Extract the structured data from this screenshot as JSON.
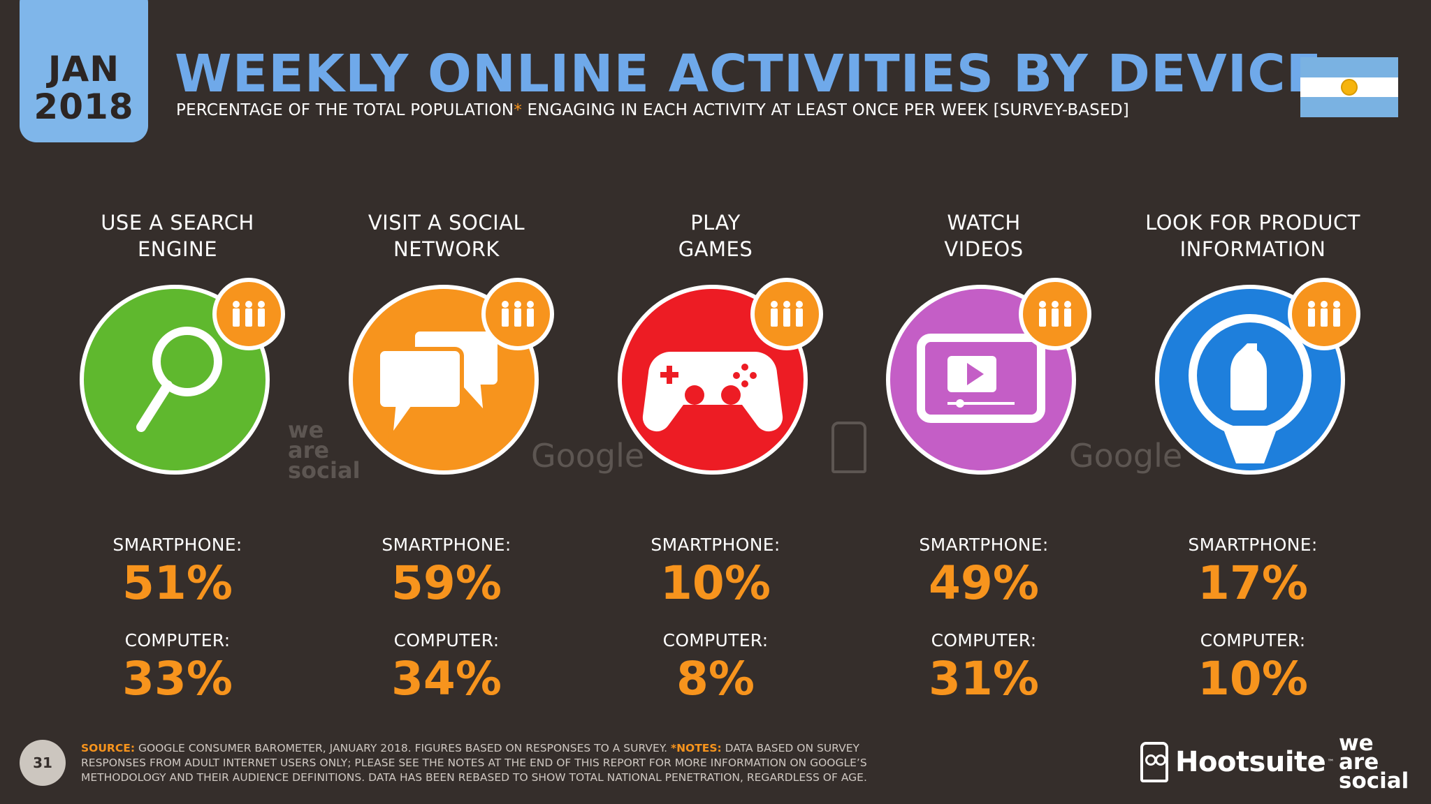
{
  "header": {
    "month": "JAN",
    "year": "2018",
    "title": "WEEKLY ONLINE ACTIVITIES BY DEVICE",
    "subtitle_part1": "PERCENTAGE OF THE TOTAL POPULATION",
    "subtitle_asterisk": "*",
    "subtitle_part2": " ENGAGING IN EACH ACTIVITY AT LEAST ONCE PER WEEK [SURVEY-BASED]"
  },
  "flag": {
    "name": "argentina-flag"
  },
  "watermarks": {
    "we_are_social": "we are social",
    "google": "Google"
  },
  "activities": [
    {
      "label_line1": "USE A SEARCH",
      "label_line2": "ENGINE",
      "icon": "magnifier-icon",
      "color": "#5fb82e",
      "smartphone_label": "SMARTPHONE:",
      "smartphone": "51%",
      "computer_label": "COMPUTER:",
      "computer": "33%"
    },
    {
      "label_line1": "VISIT A SOCIAL",
      "label_line2": "NETWORK",
      "icon": "chat-bubbles-icon",
      "color": "#f7941d",
      "smartphone_label": "SMARTPHONE:",
      "smartphone": "59%",
      "computer_label": "COMPUTER:",
      "computer": "34%"
    },
    {
      "label_line1": "PLAY",
      "label_line2": "GAMES",
      "icon": "gamepad-icon",
      "color": "#ed1c24",
      "smartphone_label": "SMARTPHONE:",
      "smartphone": "10%",
      "computer_label": "COMPUTER:",
      "computer": "8%"
    },
    {
      "label_line1": "WATCH",
      "label_line2": "VIDEOS",
      "icon": "video-player-icon",
      "color": "#c45ec6",
      "smartphone_label": "SMARTPHONE:",
      "smartphone": "49%",
      "computer_label": "COMPUTER:",
      "computer": "31%"
    },
    {
      "label_line1": "LOOK FOR PRODUCT",
      "label_line2": "INFORMATION",
      "icon": "product-search-icon",
      "color": "#1e7fdc",
      "smartphone_label": "SMARTPHONE:",
      "smartphone": "17%",
      "computer_label": "COMPUTER:",
      "computer": "10%"
    }
  ],
  "footer": {
    "page_number": "31",
    "source_label": "SOURCE:",
    "source_text": " GOOGLE CONSUMER BAROMETER, JANUARY 2018. FIGURES BASED ON RESPONSES TO A SURVEY. ",
    "notes_label": "*NOTES:",
    "notes_text": " DATA BASED ON SURVEY RESPONSES FROM ADULT INTERNET USERS ONLY; PLEASE SEE THE NOTES AT THE END OF THIS REPORT FOR MORE INFORMATION ON GOOGLE’S METHODOLOGY AND THEIR AUDIENCE DEFINITIONS. DATA HAS BEEN REBASED TO SHOW TOTAL NATIONAL PENETRATION, REGARDLESS OF AGE.",
    "hootsuite": "Hootsuite",
    "hootsuite_tm": "™",
    "we_are_social": "we are social"
  }
}
